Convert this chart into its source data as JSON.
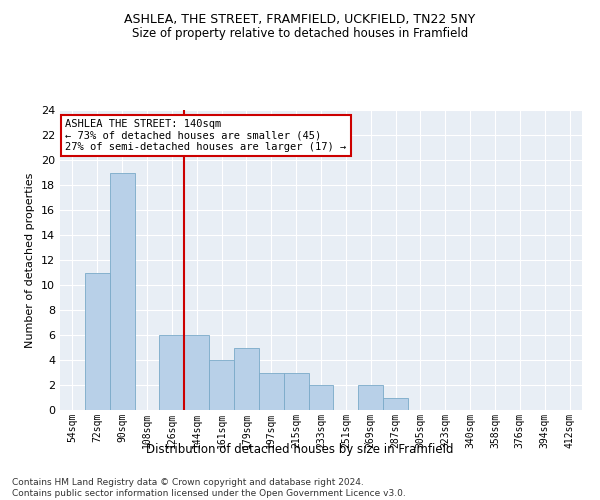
{
  "title": "ASHLEA, THE STREET, FRAMFIELD, UCKFIELD, TN22 5NY",
  "subtitle": "Size of property relative to detached houses in Framfield",
  "xlabel": "Distribution of detached houses by size in Framfield",
  "ylabel": "Number of detached properties",
  "bins": [
    "54sqm",
    "72sqm",
    "90sqm",
    "108sqm",
    "126sqm",
    "144sqm",
    "161sqm",
    "179sqm",
    "197sqm",
    "215sqm",
    "233sqm",
    "251sqm",
    "269sqm",
    "287sqm",
    "305sqm",
    "323sqm",
    "340sqm",
    "358sqm",
    "376sqm",
    "394sqm",
    "412sqm"
  ],
  "values": [
    0,
    11,
    19,
    0,
    6,
    6,
    4,
    5,
    3,
    3,
    2,
    0,
    2,
    1,
    0,
    0,
    0,
    0,
    0,
    0,
    0
  ],
  "bar_color": "#b8d0e8",
  "bar_edge_color": "#7aaac8",
  "vline_color": "#cc0000",
  "annotation_text": "ASHLEA THE STREET: 140sqm\n← 73% of detached houses are smaller (45)\n27% of semi-detached houses are larger (17) →",
  "annotation_box_color": "white",
  "annotation_box_edge_color": "#cc0000",
  "ylim": [
    0,
    24
  ],
  "yticks": [
    0,
    2,
    4,
    6,
    8,
    10,
    12,
    14,
    16,
    18,
    20,
    22,
    24
  ],
  "bg_color": "#e8eef5",
  "title_fontsize": 9,
  "subtitle_fontsize": 8.5,
  "footer": "Contains HM Land Registry data © Crown copyright and database right 2024.\nContains public sector information licensed under the Open Government Licence v3.0."
}
